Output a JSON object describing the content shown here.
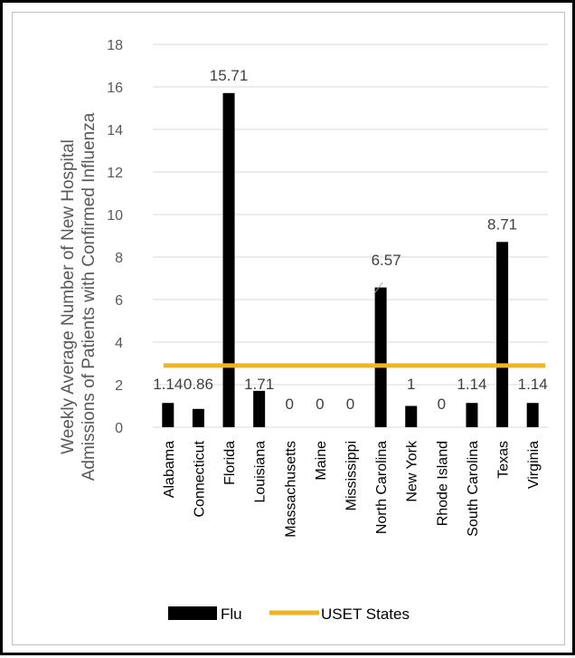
{
  "chart_data": {
    "type": "bar",
    "ylabel": [
      "Weekly Average Number of New Hospital",
      "Admissions of Patients with Confirmed Influenza"
    ],
    "ylim": [
      0,
      18
    ],
    "yticks": [
      0,
      2,
      4,
      6,
      8,
      10,
      12,
      14,
      16,
      18
    ],
    "categories": [
      "Alabama",
      "Connecticut",
      "Florida",
      "Louisiana",
      "Massachusetts",
      "Maine",
      "Mississippi",
      "North Carolina",
      "New York",
      "Rhode Island",
      "South Carolina",
      "Texas",
      "Virginia"
    ],
    "series": [
      {
        "name": "Flu",
        "type": "bar",
        "color": "#000000",
        "values": [
          1.14,
          0.86,
          15.71,
          1.71,
          0,
          0,
          0,
          6.57,
          1,
          0,
          1.14,
          8.71,
          1.14
        ],
        "labels": [
          "1.14",
          "0.86",
          "15.71",
          "1.71",
          "0",
          "0",
          "0",
          "6.57",
          "1",
          "0",
          "1.14",
          "8.71",
          "1.14"
        ]
      },
      {
        "name": "USET States",
        "type": "line",
        "color": "#f0b323",
        "value": 2.9
      }
    ],
    "grid": true,
    "legend_position": "bottom"
  }
}
